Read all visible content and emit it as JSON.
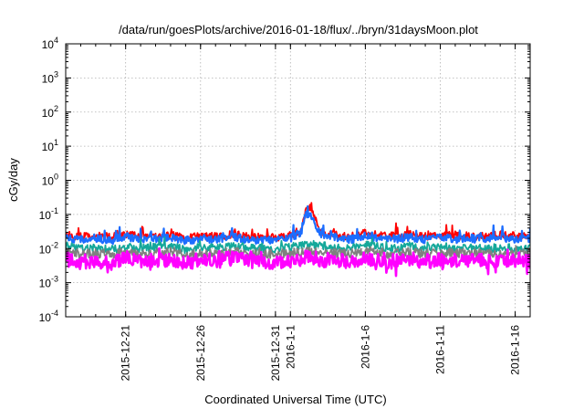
{
  "chart_data": {
    "type": "line",
    "title": "/data/run/goesPlots/archive/2016-01-18/flux/../bryn/31daysMoon.plot",
    "xlabel": "Coordinated Universal Time (UTC)",
    "ylabel": "cGy/day",
    "yscale": "log",
    "ylim": [
      0.0001,
      10000
    ],
    "y_ticks": [
      {
        "base": "10",
        "exp": "-4"
      },
      {
        "base": "10",
        "exp": "-3"
      },
      {
        "base": "10",
        "exp": "-2"
      },
      {
        "base": "10",
        "exp": "-1"
      },
      {
        "base": "10",
        "exp": "0"
      },
      {
        "base": "10",
        "exp": "1"
      },
      {
        "base": "10",
        "exp": "2"
      },
      {
        "base": "10",
        "exp": "3"
      },
      {
        "base": "10",
        "exp": "4"
      }
    ],
    "x_start_day": "2015-12-17",
    "x_range_days": [
      0,
      31
    ],
    "x_ticks": [
      {
        "label": "2015-12-21",
        "day": 4
      },
      {
        "label": "2015-12-26",
        "day": 9
      },
      {
        "label": "2015-12-31",
        "day": 14
      },
      {
        "label": "2016-1-1",
        "day": 15
      },
      {
        "label": "2016-1-6",
        "day": 20
      },
      {
        "label": "2016-1-11",
        "day": 25
      },
      {
        "label": "2016-1-16",
        "day": 30
      }
    ],
    "grid": true,
    "series": [
      {
        "name": "red",
        "color": "#ff0000",
        "x": [
          0,
          1,
          2,
          3,
          4,
          5,
          6,
          7,
          8,
          9,
          10,
          11,
          12,
          13,
          14,
          15,
          15.7,
          16,
          16.3,
          16.6,
          17,
          18,
          19,
          20,
          21,
          22,
          23,
          24,
          25,
          26,
          27,
          28,
          29,
          30,
          31
        ],
        "y": [
          0.025,
          0.022,
          0.024,
          0.021,
          0.026,
          0.022,
          0.023,
          0.025,
          0.021,
          0.024,
          0.022,
          0.026,
          0.023,
          0.022,
          0.021,
          0.024,
          0.035,
          0.12,
          0.19,
          0.08,
          0.03,
          0.025,
          0.022,
          0.028,
          0.024,
          0.023,
          0.026,
          0.022,
          0.025,
          0.023,
          0.024,
          0.022,
          0.025,
          0.023,
          0.024
        ]
      },
      {
        "name": "blue",
        "color": "#1c6dff",
        "x": [
          0,
          1,
          2,
          3,
          4,
          5,
          6,
          7,
          8,
          9,
          10,
          11,
          12,
          13,
          14,
          15,
          15.7,
          16,
          16.3,
          16.6,
          17,
          18,
          19,
          20,
          21,
          22,
          23,
          24,
          25,
          26,
          27,
          28,
          29,
          30,
          31
        ],
        "y": [
          0.021,
          0.018,
          0.02,
          0.017,
          0.022,
          0.018,
          0.019,
          0.021,
          0.017,
          0.02,
          0.018,
          0.022,
          0.019,
          0.018,
          0.017,
          0.02,
          0.03,
          0.09,
          0.11,
          0.06,
          0.025,
          0.021,
          0.018,
          0.024,
          0.02,
          0.019,
          0.022,
          0.018,
          0.021,
          0.019,
          0.02,
          0.018,
          0.021,
          0.019,
          0.02
        ]
      },
      {
        "name": "teal",
        "color": "#14a89a",
        "x": [
          0,
          1,
          2,
          3,
          4,
          5,
          6,
          7,
          8,
          9,
          10,
          11,
          12,
          13,
          14,
          15,
          16,
          17,
          18,
          19,
          20,
          21,
          22,
          23,
          24,
          25,
          26,
          27,
          28,
          29,
          30,
          31
        ],
        "y": [
          0.012,
          0.01,
          0.011,
          0.009,
          0.012,
          0.01,
          0.011,
          0.012,
          0.009,
          0.011,
          0.01,
          0.012,
          0.011,
          0.01,
          0.009,
          0.011,
          0.014,
          0.012,
          0.011,
          0.01,
          0.013,
          0.011,
          0.01,
          0.012,
          0.01,
          0.011,
          0.01,
          0.011,
          0.01,
          0.011,
          0.01,
          0.011
        ]
      },
      {
        "name": "gray",
        "color": "#808080",
        "x": [
          0,
          1,
          2,
          3,
          4,
          5,
          6,
          7,
          8,
          9,
          10,
          11,
          12,
          13,
          14,
          15,
          16,
          17,
          18,
          19,
          20,
          21,
          22,
          23,
          24,
          25,
          26,
          27,
          28,
          29,
          30,
          31
        ],
        "y": [
          0.008,
          0.007,
          0.0075,
          0.0065,
          0.008,
          0.007,
          0.0072,
          0.008,
          0.0066,
          0.0074,
          0.007,
          0.008,
          0.0072,
          0.007,
          0.0066,
          0.0075,
          0.0085,
          0.0078,
          0.0072,
          0.007,
          0.0082,
          0.0074,
          0.007,
          0.0078,
          0.007,
          0.0074,
          0.007,
          0.0073,
          0.007,
          0.0074,
          0.007,
          0.0072
        ]
      },
      {
        "name": "magenta",
        "color": "#ff00ff",
        "x": [
          0,
          1,
          2,
          3,
          4,
          5,
          6,
          7,
          8,
          9,
          10,
          11,
          12,
          13,
          14,
          15,
          16,
          17,
          18,
          19,
          20,
          21,
          22,
          23,
          24,
          25,
          26,
          27,
          28,
          29,
          30,
          31
        ],
        "y": [
          0.005,
          0.004,
          0.0045,
          0.0038,
          0.0052,
          0.0042,
          0.0044,
          0.005,
          0.0038,
          0.0046,
          0.0042,
          0.0052,
          0.0044,
          0.0042,
          0.0038,
          0.0046,
          0.0055,
          0.0048,
          0.0044,
          0.0042,
          0.0052,
          0.0045,
          0.0042,
          0.0048,
          0.0042,
          0.0045,
          0.0042,
          0.0044,
          0.0042,
          0.0045,
          0.0042,
          0.0043
        ]
      }
    ]
  }
}
